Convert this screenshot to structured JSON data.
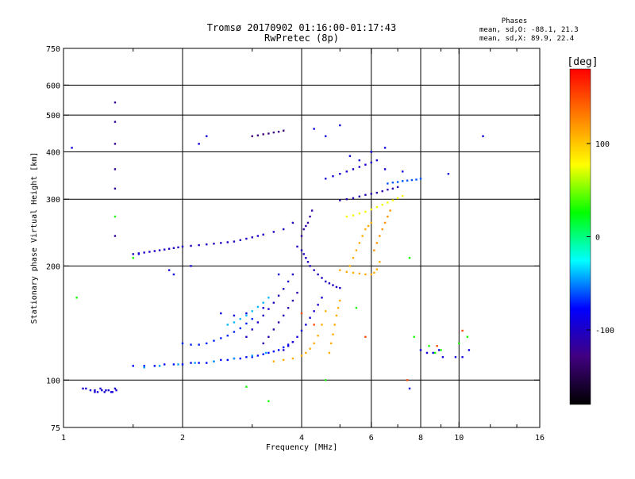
{
  "header": {
    "title_line1": "Tromsø 20170902 01:16:00-01:17:43",
    "title_line2": "RwPretec (8p)"
  },
  "stats": {
    "heading": "Phases",
    "o_line": "mean, sd,O: -88.1, 21.3",
    "x_line": "mean, sd,X:  89.9, 22.4"
  },
  "chart_data": {
    "type": "scatter",
    "xlabel": "Frequency [MHz]",
    "ylabel": "Stationary phase Virtual Height [km]",
    "x_scale": "log",
    "y_scale": "log",
    "xlim": [
      1,
      16
    ],
    "ylim": [
      75,
      750
    ],
    "x_ticks": [
      1,
      2,
      4,
      6,
      8,
      10,
      16
    ],
    "x_tick_labels": [
      "1",
      "2",
      "4",
      "6",
      "8",
      "10",
      "16"
    ],
    "x_minor_ticks": [
      1.5,
      3,
      5,
      7,
      9,
      12,
      14
    ],
    "x_grid": [
      2,
      4,
      6,
      8,
      10
    ],
    "y_ticks": [
      75,
      100,
      200,
      300,
      400,
      500,
      600,
      750
    ],
    "y_tick_labels": [
      "75",
      "100",
      "200",
      "300",
      "400",
      "500",
      "600",
      "750"
    ],
    "y_grid": [
      100,
      200,
      300,
      400,
      500,
      600
    ],
    "grid": true,
    "colorbar": {
      "label": "[deg]",
      "range": [
        -180,
        180
      ],
      "ticks": [
        100,
        0,
        -100
      ],
      "tick_labels": [
        "100",
        "0",
        "-100"
      ],
      "stops": [
        "#ff0000",
        "#ff8000",
        "#ffff00",
        "#00ff00",
        "#00ffff",
        "#0000ff",
        "#400080",
        "#000000"
      ]
    },
    "series": [
      {
        "x": [
          1.14,
          1.17,
          1.2,
          1.22,
          1.25,
          1.27,
          1.3,
          1.33,
          1.35,
          1.12,
          1.2,
          1.28,
          1.36,
          1.24,
          1.32
        ],
        "y": [
          95,
          94,
          94,
          93,
          94,
          93,
          94,
          93,
          95,
          95,
          93,
          94,
          94,
          95,
          93
        ],
        "phase": -95
      },
      {
        "x": [
          1.5,
          1.6,
          1.7,
          1.8,
          1.9,
          2.0,
          2.1,
          2.2,
          2.3,
          2.4,
          2.5,
          2.6,
          2.7,
          2.8,
          2.9,
          3.0,
          3.1,
          3.2,
          3.3,
          3.4,
          3.5,
          3.6,
          3.7,
          3.8
        ],
        "y": [
          109,
          109,
          109,
          110,
          110,
          110,
          111,
          111,
          111,
          112,
          113,
          113,
          114,
          114,
          115,
          115,
          116,
          117,
          118,
          119,
          120,
          122,
          124,
          126
        ],
        "phase": -75
      },
      {
        "x": [
          1.6,
          1.75,
          1.95,
          2.15,
          2.4,
          2.7,
          3.0,
          3.25
        ],
        "y": [
          108,
          109,
          110,
          111,
          112,
          114,
          116,
          118
        ],
        "phase": -45
      },
      {
        "x": [
          2.0,
          2.1,
          2.2,
          2.3,
          2.4,
          2.5,
          2.6,
          2.7,
          2.8,
          2.9,
          3.0
        ],
        "y": [
          125,
          124,
          124,
          125,
          127,
          129,
          131,
          134,
          137,
          141,
          145
        ],
        "phase": -70
      },
      {
        "x": [
          2.6,
          2.7,
          2.8,
          2.9,
          3.0,
          3.1,
          3.2,
          3.3
        ],
        "y": [
          140,
          142,
          145,
          148,
          152,
          156,
          160,
          165
        ],
        "phase": -40
      },
      {
        "x": [
          2.9,
          3.0,
          3.1,
          3.2,
          3.3,
          3.4,
          3.5,
          3.6,
          3.7,
          3.8
        ],
        "y": [
          130,
          136,
          142,
          148,
          154,
          160,
          167,
          174,
          182,
          190
        ],
        "phase": -100
      },
      {
        "x": [
          3.2,
          3.3,
          3.4,
          3.5,
          3.6,
          3.7,
          3.8,
          3.9
        ],
        "y": [
          125,
          130,
          136,
          142,
          148,
          155,
          162,
          170
        ],
        "phase": -110
      },
      {
        "x": [
          3.6,
          3.7,
          3.8,
          3.9,
          4.0,
          4.1,
          4.2,
          4.3,
          4.4,
          4.5
        ],
        "y": [
          120,
          123,
          126,
          130,
          135,
          140,
          146,
          152,
          158,
          165
        ],
        "phase": -95
      },
      {
        "x": [
          3.9,
          4.0,
          4.05,
          4.1,
          4.15,
          4.2,
          4.3,
          4.4,
          4.5,
          4.6,
          4.7,
          4.8,
          4.9,
          5.0
        ],
        "y": [
          225,
          220,
          215,
          210,
          205,
          200,
          195,
          190,
          186,
          182,
          180,
          178,
          176,
          175
        ],
        "phase": -100
      },
      {
        "x": [
          4.0,
          4.05,
          4.1,
          4.15,
          4.2,
          4.25
        ],
        "y": [
          240,
          250,
          255,
          260,
          270,
          280
        ],
        "phase": -115
      },
      {
        "x": [
          3.4,
          3.6,
          3.8,
          4.0,
          4.1,
          4.2,
          4.3,
          4.4,
          4.5,
          4.6
        ],
        "y": [
          112,
          113,
          114,
          116,
          118,
          121,
          125,
          131,
          140,
          152
        ],
        "phase": 110
      },
      {
        "x": [
          4.7,
          4.75,
          4.8,
          4.85,
          4.9,
          4.95,
          5.0
        ],
        "y": [
          118,
          125,
          132,
          140,
          148,
          155,
          162
        ],
        "phase": 110
      },
      {
        "x": [
          5.0,
          5.2,
          5.4,
          5.6,
          5.8,
          6.0,
          6.1,
          6.2,
          6.3
        ],
        "y": [
          195,
          193,
          192,
          191,
          190,
          190,
          192,
          196,
          205
        ],
        "phase": 110
      },
      {
        "x": [
          5.3,
          5.4,
          5.5,
          5.6,
          5.7,
          5.8,
          5.9,
          6.0
        ],
        "y": [
          200,
          210,
          220,
          230,
          240,
          250,
          255,
          260
        ],
        "phase": 110
      },
      {
        "x": [
          6.1,
          6.2,
          6.3,
          6.4,
          6.5,
          6.6,
          6.7
        ],
        "y": [
          220,
          230,
          240,
          250,
          260,
          270,
          280
        ],
        "phase": 120
      },
      {
        "x": [
          5.2,
          5.4,
          5.6,
          5.8,
          6.0,
          6.2,
          6.4,
          6.6,
          6.8,
          7.0,
          7.2
        ],
        "y": [
          270,
          272,
          275,
          278,
          282,
          286,
          290,
          294,
          298,
          302,
          306
        ],
        "phase": 75
      },
      {
        "x": [
          5.0,
          5.2,
          5.4,
          5.6,
          5.8,
          6.0,
          6.2,
          6.4,
          6.6,
          6.8,
          7.0
        ],
        "y": [
          298,
          300,
          302,
          305,
          308,
          310,
          312,
          315,
          318,
          320,
          323
        ],
        "phase": -110
      },
      {
        "x": [
          4.6,
          4.8,
          5.0,
          5.2,
          5.4,
          5.6,
          5.8,
          6.0,
          6.2,
          6.5
        ],
        "y": [
          340,
          345,
          350,
          355,
          360,
          365,
          370,
          375,
          380,
          360
        ],
        "phase": -95
      },
      {
        "x": [
          6.6,
          6.8,
          7.0,
          7.2,
          7.4,
          7.6,
          7.8,
          8.0
        ],
        "y": [
          330,
          332,
          333,
          335,
          336,
          337,
          338,
          340
        ],
        "phase": -60
      },
      {
        "x": [
          3.0,
          3.1,
          3.2,
          3.3,
          3.4,
          3.5,
          3.6
        ],
        "y": [
          440,
          442,
          445,
          447,
          450,
          452,
          455
        ],
        "phase": -130
      },
      {
        "x": [
          1.5,
          1.55,
          1.6,
          1.65,
          1.7,
          1.75,
          1.8,
          1.85,
          1.9,
          1.95,
          2.0,
          2.1,
          2.2,
          2.3,
          2.4,
          2.5,
          2.6,
          2.7,
          2.8,
          2.9,
          3.0,
          3.1,
          3.2,
          3.4,
          3.6,
          3.8
        ],
        "y": [
          215,
          216,
          217,
          218,
          219,
          220,
          221,
          222,
          223,
          224,
          225,
          226,
          227,
          228,
          229,
          230,
          231,
          232,
          234,
          236,
          238,
          240,
          242,
          246,
          250,
          260
        ],
        "phase": -100
      },
      {
        "x": [
          1.35,
          1.35,
          1.35,
          1.35,
          1.35,
          1.35
        ],
        "y": [
          540,
          480,
          420,
          360,
          320,
          240
        ],
        "phase": -120
      },
      {
        "x": [
          1.05,
          1.55,
          1.85,
          1.9,
          2.1,
          2.2,
          2.3,
          2.5,
          2.7,
          2.9,
          3.2,
          3.5,
          4.3,
          4.6,
          5.0,
          5.3,
          5.6,
          6.0,
          6.5,
          7.2,
          7.5,
          8.0,
          8.3,
          8.6,
          8.9,
          9.1,
          9.4,
          9.8,
          10.2,
          10.6,
          11.5
        ],
        "y": [
          410,
          215,
          195,
          190,
          200,
          420,
          440,
          150,
          148,
          150,
          155,
          190,
          460,
          440,
          470,
          390,
          380,
          400,
          410,
          355,
          95,
          120,
          118,
          118,
          120,
          115,
          350,
          115,
          115,
          120,
          440
        ],
        "phase": -90
      },
      {
        "x": [
          1.08,
          1.35,
          1.5,
          2.9,
          3.3,
          4.6,
          5.5,
          7.5,
          7.7,
          8.4,
          8.7,
          9.0,
          10.0,
          10.5
        ],
        "y": [
          165,
          270,
          210,
          96,
          88,
          100,
          155,
          210,
          130,
          123,
          118,
          120,
          125,
          130
        ],
        "phase": 30
      },
      {
        "x": [
          4.0,
          4.3,
          5.8,
          7.4,
          8.8,
          10.2
        ],
        "y": [
          150,
          140,
          130,
          100,
          123,
          135
        ],
        "phase": 150
      }
    ]
  }
}
